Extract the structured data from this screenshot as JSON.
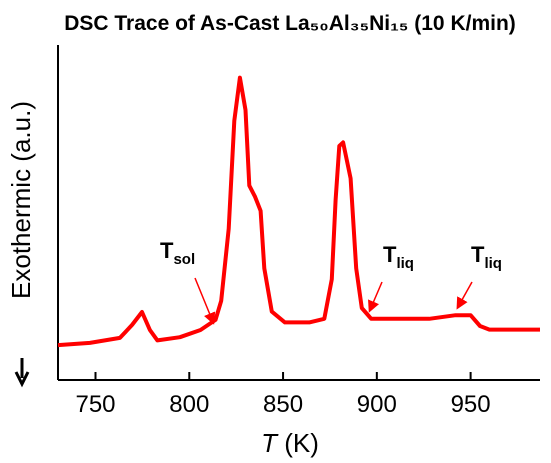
{
  "chart_data": {
    "type": "line",
    "title": "DSC Trace of As-Cast La₅₀Al₃₅Ni₁₅ (10 K/min)",
    "x_label": {
      "italic": "T",
      "rest": " (K)"
    },
    "y_label": "Exothermic (a.u.)",
    "x": [
      730,
      747,
      763,
      769.5,
      774.8,
      779,
      783,
      795,
      806,
      814,
      817,
      821,
      824,
      827,
      830,
      832,
      835,
      838,
      840,
      844,
      851,
      864,
      872,
      876,
      878,
      880,
      882,
      886,
      889,
      892,
      897,
      912,
      928,
      942,
      950,
      955,
      960,
      971,
      987
    ],
    "series": [
      {
        "name": "DSC",
        "color": "#ff0000",
        "values": [
          9.7,
          10.3,
          11.7,
          15.3,
          18.9,
          13.9,
          11,
          11.9,
          13.9,
          16.7,
          22,
          42,
          72,
          84,
          75,
          54,
          51,
          47,
          31,
          19,
          16,
          16,
          17,
          28,
          50,
          65,
          66,
          56,
          31,
          20,
          17,
          17,
          17,
          18,
          18,
          15,
          14,
          14,
          14
        ]
      }
    ],
    "xlim": [
      730,
      987
    ],
    "xticks": [
      750,
      800,
      850,
      900,
      950
    ],
    "ylim": [
      0,
      100
    ],
    "annotations": [
      {
        "text": "T",
        "sub": "sol"
      },
      {
        "text": "T",
        "sub": "liq"
      },
      {
        "text": "T",
        "sub": "liq"
      }
    ]
  }
}
